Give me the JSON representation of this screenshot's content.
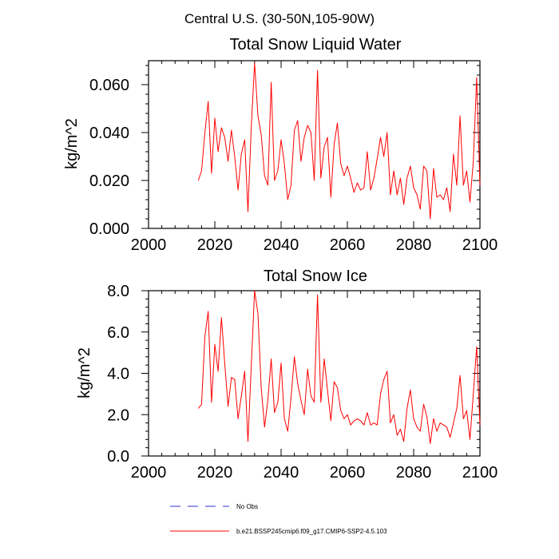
{
  "page": {
    "suptitle": "Central U.S. (30-50N,105-90W)"
  },
  "legend": {
    "items": [
      {
        "label": "No Obs",
        "color": "#3333cc",
        "style": "dashed"
      },
      {
        "label": "b.e21.BSSP245cmip6.f09_g17.CMIP6-SSP2-4.5.103",
        "color": "#ff0000",
        "style": "solid"
      }
    ]
  },
  "chart_data": [
    {
      "type": "line",
      "title": "Total Snow Liquid Water",
      "xlabel": "",
      "ylabel": "kg/m^2",
      "xlim": [
        2000,
        2100
      ],
      "ylim": [
        0.0,
        0.07
      ],
      "xticks": [
        2000,
        2020,
        2040,
        2060,
        2080,
        2100
      ],
      "yticks": [
        0.0,
        0.02,
        0.04,
        0.06
      ],
      "ytick_labels": [
        "0.000",
        "0.020",
        "0.040",
        "0.060"
      ],
      "grid": false,
      "series": [
        {
          "name": "b.e21.BSSP245cmip6.f09_g17.CMIP6-SSP2-4.5.103",
          "color": "#ff0000",
          "x": [
            2015,
            2016,
            2017,
            2018,
            2019,
            2020,
            2021,
            2022,
            2023,
            2024,
            2025,
            2026,
            2027,
            2028,
            2029,
            2030,
            2031,
            2032,
            2033,
            2034,
            2035,
            2036,
            2037,
            2038,
            2039,
            2040,
            2041,
            2042,
            2043,
            2044,
            2045,
            2046,
            2047,
            2048,
            2049,
            2050,
            2051,
            2052,
            2053,
            2054,
            2055,
            2056,
            2057,
            2058,
            2059,
            2060,
            2061,
            2062,
            2063,
            2064,
            2065,
            2066,
            2067,
            2068,
            2069,
            2070,
            2071,
            2072,
            2073,
            2074,
            2075,
            2076,
            2077,
            2078,
            2079,
            2080,
            2081,
            2082,
            2083,
            2084,
            2085,
            2086,
            2087,
            2088,
            2089,
            2090,
            2091,
            2092,
            2093,
            2094,
            2095,
            2096,
            2097,
            2098,
            2099,
            2100
          ],
          "values": [
            0.02,
            0.024,
            0.04,
            0.053,
            0.023,
            0.046,
            0.032,
            0.042,
            0.038,
            0.028,
            0.041,
            0.03,
            0.016,
            0.031,
            0.037,
            0.007,
            0.042,
            0.069,
            0.047,
            0.039,
            0.022,
            0.018,
            0.061,
            0.02,
            0.024,
            0.037,
            0.027,
            0.012,
            0.018,
            0.041,
            0.045,
            0.028,
            0.038,
            0.043,
            0.04,
            0.02,
            0.066,
            0.021,
            0.034,
            0.038,
            0.013,
            0.035,
            0.044,
            0.027,
            0.022,
            0.026,
            0.021,
            0.015,
            0.019,
            0.016,
            0.017,
            0.032,
            0.016,
            0.021,
            0.029,
            0.038,
            0.03,
            0.04,
            0.014,
            0.024,
            0.014,
            0.021,
            0.01,
            0.021,
            0.026,
            0.017,
            0.014,
            0.008,
            0.026,
            0.024,
            0.004,
            0.025,
            0.013,
            0.014,
            0.012,
            0.017,
            0.007,
            0.031,
            0.018,
            0.047,
            0.018,
            0.024,
            0.011,
            0.028,
            0.063,
            0.018
          ]
        }
      ]
    },
    {
      "type": "line",
      "title": "Total Snow Ice",
      "xlabel": "",
      "ylabel": "kg/m^2",
      "xlim": [
        2000,
        2100
      ],
      "ylim": [
        0.0,
        8.0
      ],
      "xticks": [
        2000,
        2020,
        2040,
        2060,
        2080,
        2100
      ],
      "yticks": [
        0.0,
        2.0,
        4.0,
        6.0,
        8.0
      ],
      "ytick_labels": [
        "0.0",
        "2.0",
        "4.0",
        "6.0",
        "8.0"
      ],
      "grid": false,
      "series": [
        {
          "name": "b.e21.BSSP245cmip6.f09_g17.CMIP6-SSP2-4.5.103",
          "color": "#ff0000",
          "x": [
            2015,
            2016,
            2017,
            2018,
            2019,
            2020,
            2021,
            2022,
            2023,
            2024,
            2025,
            2026,
            2027,
            2028,
            2029,
            2030,
            2031,
            2032,
            2033,
            2034,
            2035,
            2036,
            2037,
            2038,
            2039,
            2040,
            2041,
            2042,
            2043,
            2044,
            2045,
            2046,
            2047,
            2048,
            2049,
            2050,
            2051,
            2052,
            2053,
            2054,
            2055,
            2056,
            2057,
            2058,
            2059,
            2060,
            2061,
            2062,
            2063,
            2064,
            2065,
            2066,
            2067,
            2068,
            2069,
            2070,
            2071,
            2072,
            2073,
            2074,
            2075,
            2076,
            2077,
            2078,
            2079,
            2080,
            2081,
            2082,
            2083,
            2084,
            2085,
            2086,
            2087,
            2088,
            2089,
            2090,
            2091,
            2092,
            2093,
            2094,
            2095,
            2096,
            2097,
            2098,
            2099,
            2100
          ],
          "values": [
            2.3,
            2.5,
            5.8,
            7.0,
            2.6,
            5.4,
            4.1,
            6.7,
            4.5,
            2.4,
            3.8,
            3.7,
            1.8,
            2.9,
            4.1,
            0.7,
            4.3,
            8.0,
            6.9,
            3.3,
            1.4,
            2.7,
            4.7,
            2.1,
            2.6,
            4.5,
            1.8,
            1.2,
            2.8,
            4.8,
            3.5,
            2.7,
            2.0,
            4.2,
            2.9,
            2.6,
            7.8,
            2.6,
            4.7,
            3.2,
            1.7,
            3.6,
            3.3,
            2.2,
            1.8,
            2.0,
            1.5,
            1.7,
            1.8,
            1.7,
            1.5,
            2.1,
            1.5,
            1.6,
            1.5,
            3.0,
            3.7,
            4.1,
            1.6,
            2.0,
            1.0,
            1.3,
            0.7,
            2.3,
            3.2,
            1.8,
            1.4,
            1.2,
            2.5,
            1.9,
            0.6,
            1.8,
            1.2,
            1.6,
            1.5,
            1.4,
            0.9,
            1.6,
            2.3,
            3.9,
            1.8,
            2.2,
            0.8,
            3.0,
            5.3,
            1.5
          ]
        }
      ]
    }
  ]
}
